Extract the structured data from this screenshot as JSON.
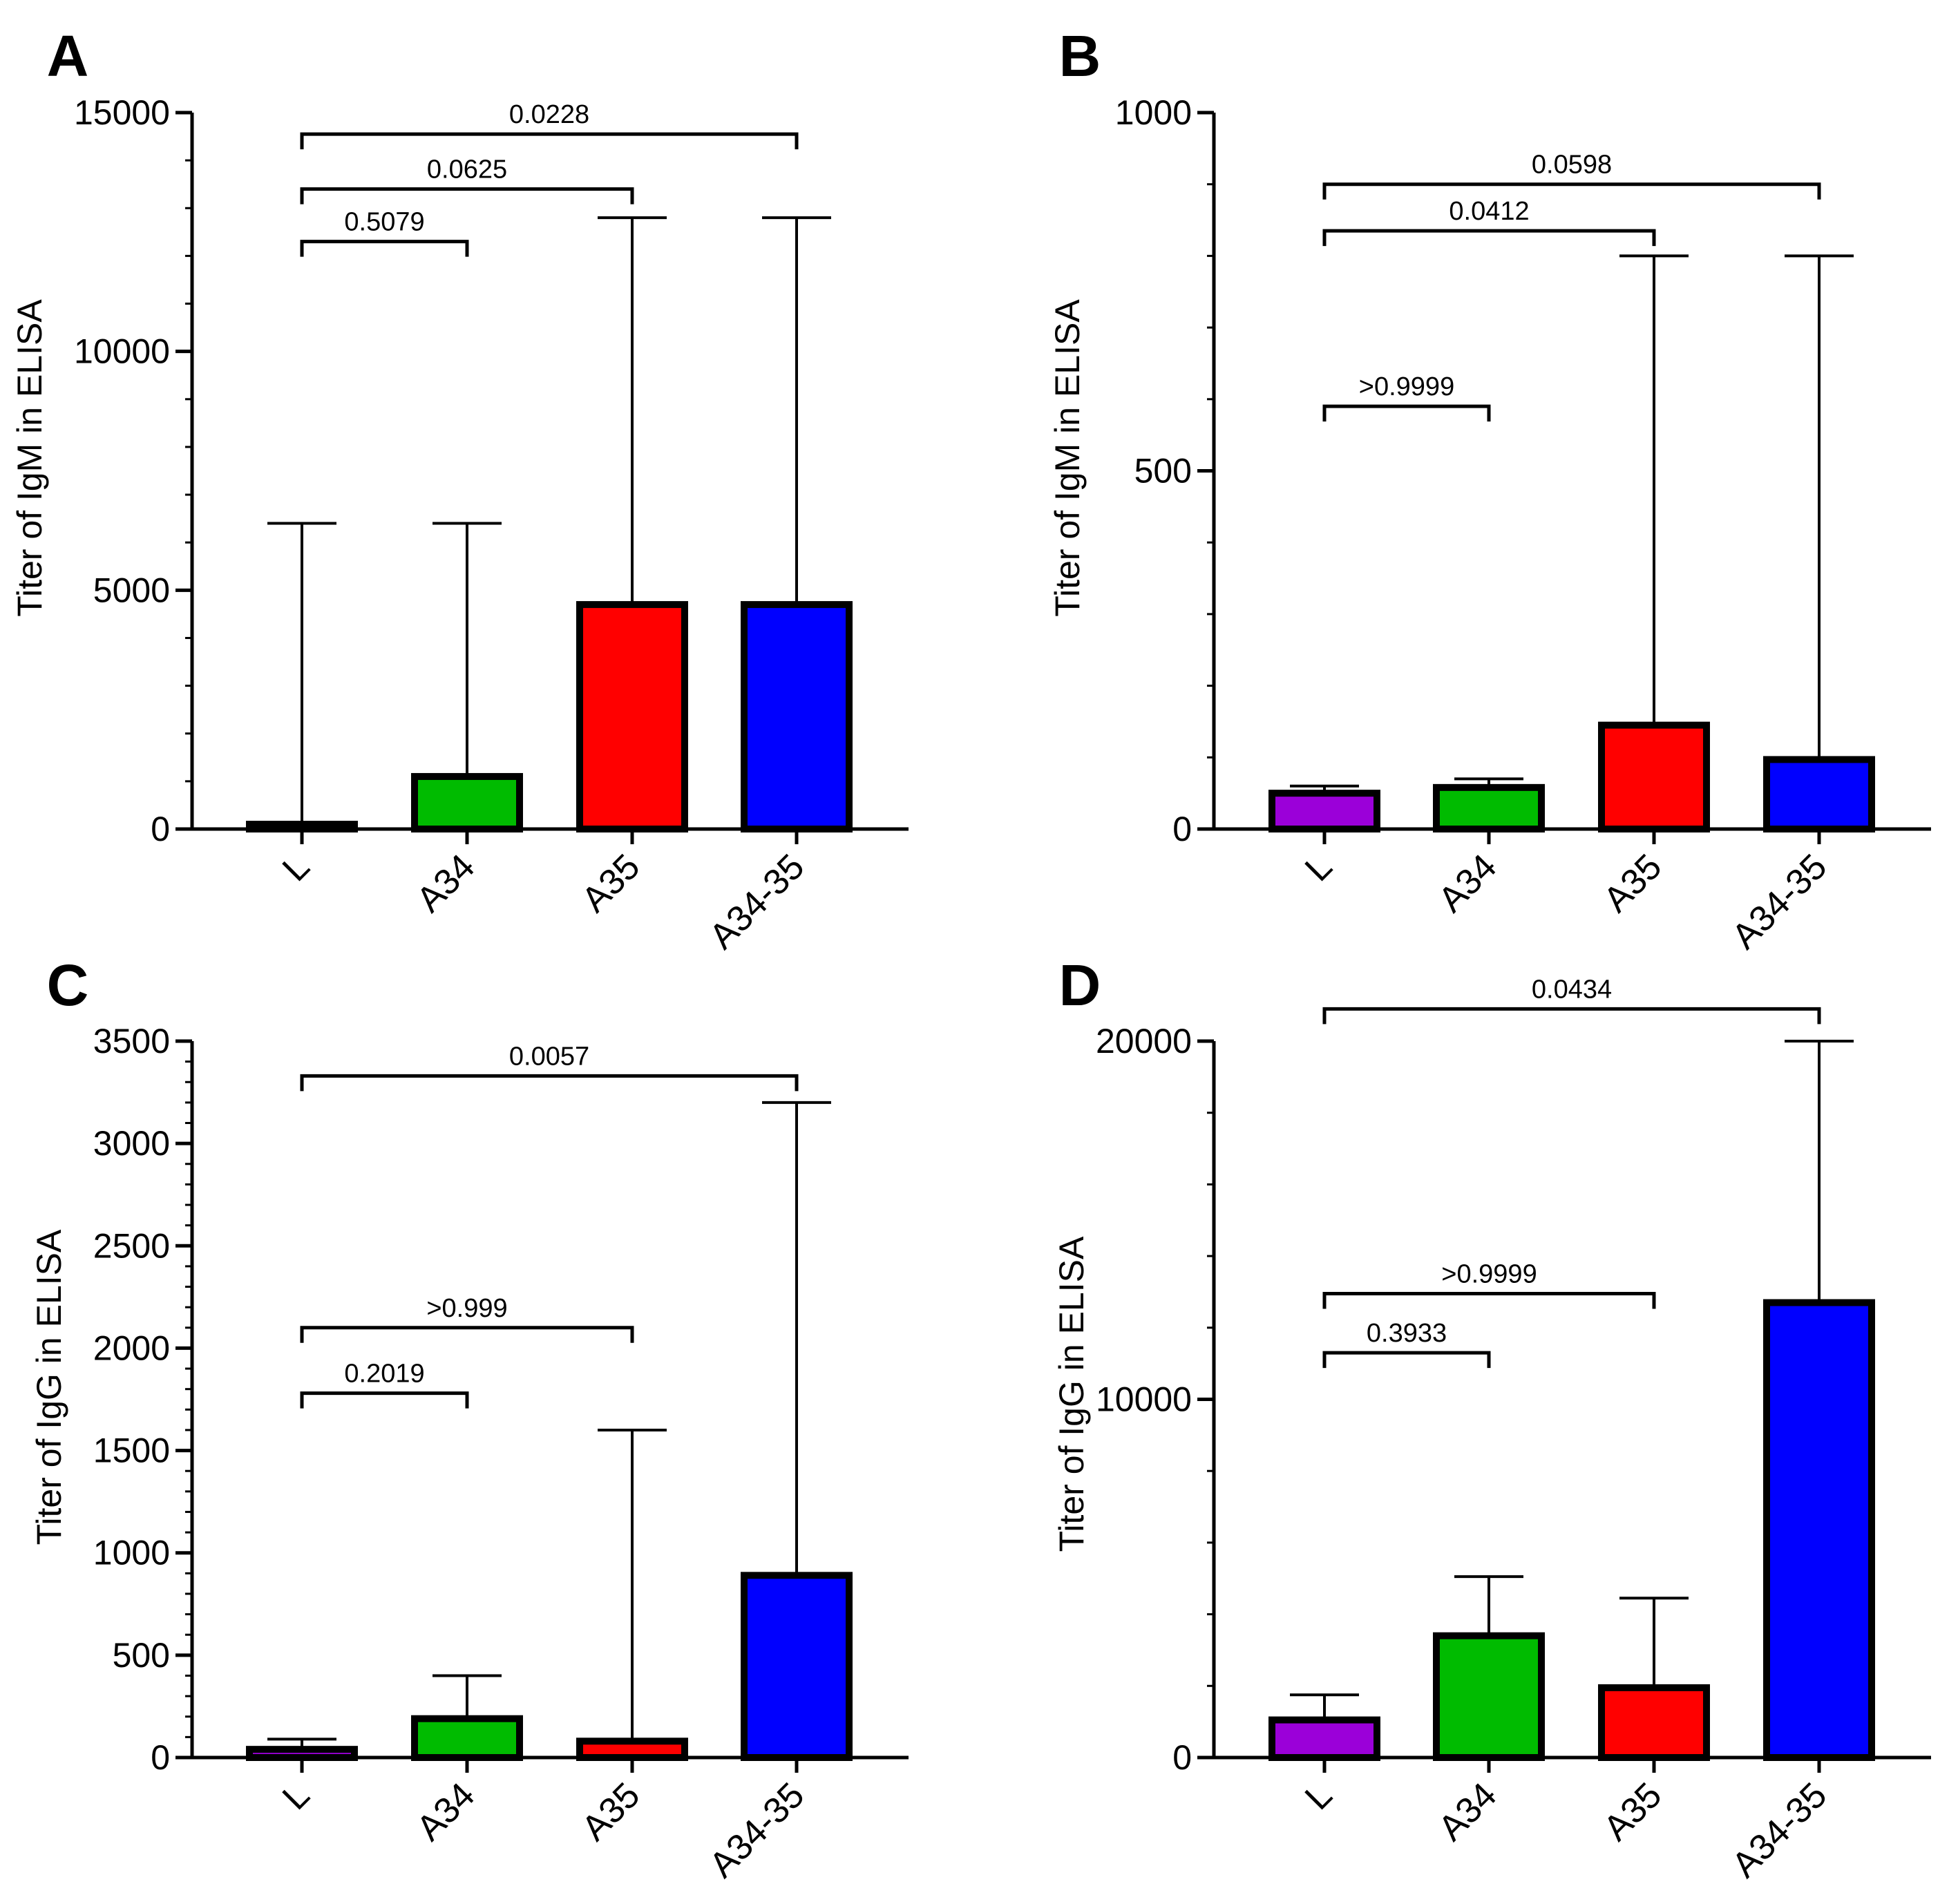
{
  "colors": {
    "L": "#9b00d9",
    "A34": "#00bb00",
    "A35": "#ff0000",
    "A34-35": "#0000ff",
    "outline": "#000000",
    "background": "#ffffff"
  },
  "chart_data": [
    {
      "panel": "A",
      "type": "bar",
      "ylabel": "Titer of IgM in ELISA",
      "ylim": [
        0,
        15000
      ],
      "yticks": [
        0,
        5000,
        10000,
        15000
      ],
      "ytick_labels": [
        "0",
        "5000",
        "10000",
        "15000"
      ],
      "categories": [
        "L",
        "A34",
        "A35",
        "A34-35"
      ],
      "values": [
        100,
        1100,
        4700,
        4700
      ],
      "error_upper": [
        6400,
        6400,
        12800,
        12800
      ],
      "comparisons": [
        {
          "from": "L",
          "to": "A34",
          "label": "0.5079",
          "y": 12300
        },
        {
          "from": "L",
          "to": "A35",
          "label": "0.0625",
          "y": 13400
        },
        {
          "from": "L",
          "to": "A34-35",
          "label": "0.0228",
          "y": 14550
        }
      ]
    },
    {
      "panel": "B",
      "type": "bar",
      "ylabel": "Titer of IgM in ELISA",
      "ylim": [
        0,
        1000
      ],
      "yticks": [
        0,
        500,
        1000
      ],
      "ytick_labels": [
        "0",
        "500",
        "1000"
      ],
      "categories": [
        "L",
        "A34",
        "A35",
        "A34-35"
      ],
      "values": [
        50,
        58,
        145,
        97
      ],
      "error_upper": [
        60,
        70,
        800,
        800
      ],
      "comparisons": [
        {
          "from": "L",
          "to": "A34",
          "label": ">0.9999",
          "y": 590
        },
        {
          "from": "L",
          "to": "A35",
          "label": "0.0412",
          "y": 835
        },
        {
          "from": "L",
          "to": "A34-35",
          "label": "0.0598",
          "y": 900
        }
      ]
    },
    {
      "panel": "C",
      "type": "bar",
      "ylabel": "Titer of IgG in ELISA",
      "ylim": [
        0,
        3500
      ],
      "yticks": [
        0,
        500,
        1000,
        1500,
        2000,
        2500,
        3000,
        3500
      ],
      "ytick_labels": [
        "0",
        "500",
        "1000",
        "1500",
        "2000",
        "2500",
        "3000",
        "3500"
      ],
      "categories": [
        "L",
        "A34",
        "A35",
        "A34-35"
      ],
      "values": [
        40,
        190,
        80,
        890
      ],
      "error_upper": [
        90,
        400,
        1600,
        3200
      ],
      "comparisons": [
        {
          "from": "L",
          "to": "A34",
          "label": "0.2019",
          "y": 1780
        },
        {
          "from": "L",
          "to": "A35",
          "label": ">0.999",
          "y": 2100
        },
        {
          "from": "L",
          "to": "A34-35",
          "label": "0.0057",
          "y": 3330
        }
      ]
    },
    {
      "panel": "D",
      "type": "bar",
      "ylabel": "Titer of IgG in ELISA",
      "ylim": [
        0,
        20000
      ],
      "yticks": [
        0,
        10000,
        20000
      ],
      "ytick_labels": [
        "0",
        "10000",
        "20000"
      ],
      "categories": [
        "L",
        "A34",
        "A35",
        "A34-35"
      ],
      "values": [
        1050,
        3400,
        1950,
        12700
      ],
      "error_upper": [
        1750,
        5050,
        4450,
        20000
      ],
      "comparisons": [
        {
          "from": "L",
          "to": "A34",
          "label": "0.3933",
          "y": 11300
        },
        {
          "from": "L",
          "to": "A35",
          "label": ">0.9999",
          "y": 12950
        },
        {
          "from": "L",
          "to": "A34-35",
          "label": "0.0434",
          "y": 20900
        }
      ]
    }
  ]
}
